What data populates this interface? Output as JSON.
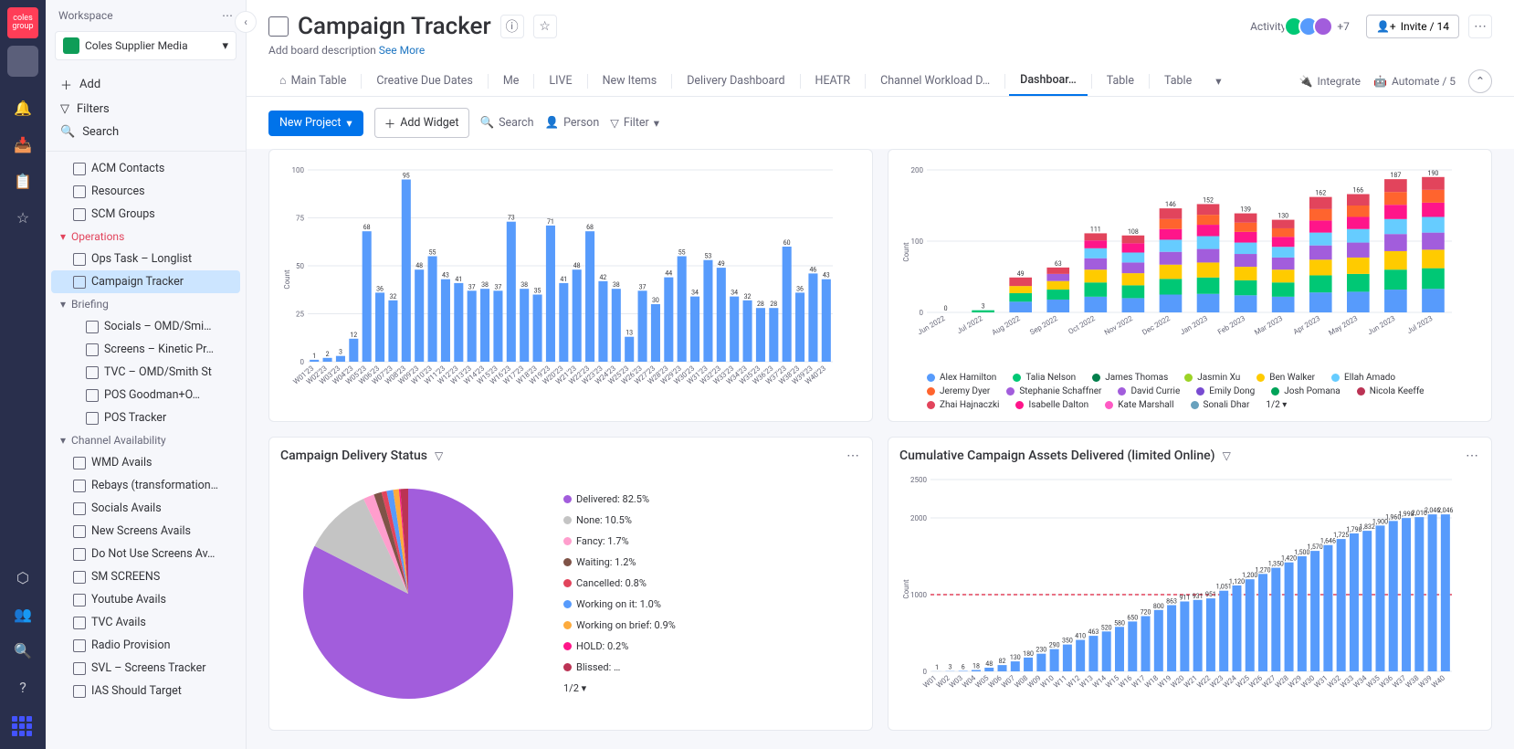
{
  "rail": {
    "logo": "coles group"
  },
  "sidebar": {
    "head": "Workspace",
    "workspace": "Coles Supplier Media",
    "tools": {
      "add": "Add",
      "filters": "Filters",
      "search": "Search"
    },
    "tree": [
      {
        "t": "item",
        "lvl": 1,
        "label": "ACM Contacts"
      },
      {
        "t": "item",
        "lvl": 1,
        "label": "Resources"
      },
      {
        "t": "item",
        "lvl": 1,
        "label": "SCM Groups"
      },
      {
        "t": "section",
        "label": "Operations",
        "red": true
      },
      {
        "t": "item",
        "lvl": 1,
        "label": "Ops Task – Longlist"
      },
      {
        "t": "item",
        "lvl": 1,
        "label": "Campaign Tracker",
        "active": true
      },
      {
        "t": "section",
        "lvl": 1,
        "label": "Briefing"
      },
      {
        "t": "item",
        "lvl": 2,
        "label": "Socials – OMD/Smi…"
      },
      {
        "t": "item",
        "lvl": 2,
        "label": "Screens – Kinetic Pr…"
      },
      {
        "t": "item",
        "lvl": 2,
        "label": "TVC – OMD/Smith St"
      },
      {
        "t": "item",
        "lvl": 2,
        "label": "POS Goodman+O…"
      },
      {
        "t": "item",
        "lvl": 2,
        "label": "POS Tracker"
      },
      {
        "t": "section",
        "label": "Channel Availability"
      },
      {
        "t": "item",
        "lvl": 1,
        "label": "WMD Avails"
      },
      {
        "t": "item",
        "lvl": 1,
        "label": "Rebays (transformation…"
      },
      {
        "t": "item",
        "lvl": 1,
        "label": "Socials Avails"
      },
      {
        "t": "item",
        "lvl": 1,
        "label": "New Screens Avails"
      },
      {
        "t": "item",
        "lvl": 1,
        "label": "Do Not Use Screens Av…"
      },
      {
        "t": "item",
        "lvl": 1,
        "label": "SM SCREENS"
      },
      {
        "t": "item",
        "lvl": 1,
        "label": "Youtube Avails"
      },
      {
        "t": "item",
        "lvl": 1,
        "label": "TVC Avails"
      },
      {
        "t": "item",
        "lvl": 1,
        "label": "Radio Provision"
      },
      {
        "t": "item",
        "lvl": 1,
        "label": "SVL – Screens Tracker"
      },
      {
        "t": "item",
        "lvl": 1,
        "label": "IAS Should Target"
      }
    ]
  },
  "header": {
    "title": "Campaign Tracker",
    "desc": "Add board description",
    "see_more": "See More",
    "activity": "Activity",
    "invite": "Invite / 14",
    "avatar_colors": [
      "#00c875",
      "#579bfc",
      "#a25ddc"
    ],
    "tabs": [
      "Main Table",
      "Creative Due Dates",
      "Me",
      "LIVE",
      "New Items",
      "Delivery Dashboard",
      "HEATR",
      "Channel Workload D…",
      "Dashboar…",
      "Table",
      "Table"
    ],
    "active_tab": 8,
    "integrate": "Integrate",
    "automate": "Automate / 5"
  },
  "toolbar": {
    "new": "New Project",
    "add_widget": "Add Widget",
    "search": "Search",
    "person": "Person",
    "filter": "Filter"
  },
  "chart1": {
    "type": "bar",
    "color": "#579bfc",
    "bg": "#ffffff",
    "grid": "#e6e9ef",
    "ylabel": "Count",
    "ymax": 100,
    "yticks": [
      0,
      25,
      50,
      75,
      100
    ],
    "categories": [
      "W01'23",
      "W02'23",
      "W03'23",
      "W04'23",
      "W05'23",
      "W06'23",
      "W07'23",
      "W08'23",
      "W09'23",
      "W10'23",
      "W11'23",
      "W12'23",
      "W13'23",
      "W14'23",
      "W15'23",
      "W16'23",
      "W17'23",
      "W18'23",
      "W19'23",
      "W20'23",
      "W21'23",
      "W22'23",
      "W23'23",
      "W24'23",
      "W25'23",
      "W26'23",
      "W27'23",
      "W28'23",
      "W29'23",
      "W30'23",
      "W31'23",
      "W32'23",
      "W33'23",
      "W34'23",
      "W35'23",
      "W36'23",
      "W37'23",
      "W38'23",
      "W39'23",
      "W40'23"
    ],
    "values": [
      1,
      2,
      3,
      12,
      68,
      36,
      32,
      95,
      48,
      55,
      43,
      41,
      37,
      38,
      37,
      73,
      38,
      35,
      71,
      41,
      48,
      68,
      42,
      38,
      13,
      37,
      30,
      44,
      55,
      34,
      53,
      49,
      34,
      32,
      28,
      28,
      60,
      36,
      46,
      43
    ]
  },
  "chart2": {
    "type": "stacked-bar",
    "bg": "#ffffff",
    "grid": "#e6e9ef",
    "ylabel": "Count",
    "ymax": 200,
    "categories": [
      "Jun 2022",
      "Jul 2022",
      "Aug 2022",
      "Sep 2022",
      "Oct 2022",
      "Nov 2022",
      "Dec 2022",
      "Jan 2023",
      "Feb 2023",
      "Mar 2023",
      "Apr 2023",
      "May 2023",
      "Jun 2023",
      "Jul 2023"
    ],
    "totals": [
      0,
      3,
      49,
      63,
      111,
      108,
      146,
      152,
      139,
      130,
      162,
      166,
      187,
      190
    ],
    "series": [
      {
        "name": "Alex Hamilton",
        "color": "#579bfc"
      },
      {
        "name": "Talia Nelson",
        "color": "#00c875"
      },
      {
        "name": "James Thomas",
        "color": "#037f4c"
      },
      {
        "name": "Jasmin Xu",
        "color": "#9cd326"
      },
      {
        "name": "Ben Walker",
        "color": "#ffcb00"
      },
      {
        "name": "Ellah Amado",
        "color": "#66ccff"
      },
      {
        "name": "Jeremy Dyer",
        "color": "#ff642e"
      },
      {
        "name": "Stephanie Schaffner",
        "color": "#a25ddc"
      },
      {
        "name": "David Currie",
        "color": "#a25ddc"
      },
      {
        "name": "Emily Dong",
        "color": "#784bd1"
      },
      {
        "name": "Josh Pomana",
        "color": "#00a359"
      },
      {
        "name": "Nicola Keeffe",
        "color": "#bb3354"
      },
      {
        "name": "Zhai Hajnaczki",
        "color": "#e2445c"
      },
      {
        "name": "Isabelle Dalton",
        "color": "#ff158a"
      },
      {
        "name": "Kate Marshall",
        "color": "#ff5ac4"
      },
      {
        "name": "Sonali Dhar",
        "color": "#68a1bd"
      }
    ],
    "stacks": [
      [],
      [
        [
          "#00c875",
          3
        ]
      ],
      [
        [
          "#579bfc",
          15
        ],
        [
          "#00c875",
          12
        ],
        [
          "#ffcb00",
          10
        ],
        [
          "#e2445c",
          12
        ]
      ],
      [
        [
          "#579bfc",
          18
        ],
        [
          "#00c875",
          14
        ],
        [
          "#ffcb00",
          12
        ],
        [
          "#a25ddc",
          10
        ],
        [
          "#e2445c",
          9
        ]
      ],
      [
        [
          "#579bfc",
          22
        ],
        [
          "#00c875",
          20
        ],
        [
          "#ffcb00",
          18
        ],
        [
          "#a25ddc",
          16
        ],
        [
          "#66ccff",
          14
        ],
        [
          "#ff158a",
          11
        ],
        [
          "#e2445c",
          10
        ]
      ],
      [
        [
          "#579bfc",
          20
        ],
        [
          "#00c875",
          18
        ],
        [
          "#ffcb00",
          17
        ],
        [
          "#a25ddc",
          15
        ],
        [
          "#66ccff",
          14
        ],
        [
          "#ff158a",
          13
        ],
        [
          "#e2445c",
          11
        ]
      ],
      [
        [
          "#579bfc",
          25
        ],
        [
          "#00c875",
          22
        ],
        [
          "#ffcb00",
          20
        ],
        [
          "#a25ddc",
          18
        ],
        [
          "#66ccff",
          17
        ],
        [
          "#ff158a",
          15
        ],
        [
          "#ff642e",
          14
        ],
        [
          "#e2445c",
          15
        ]
      ],
      [
        [
          "#579bfc",
          26
        ],
        [
          "#00c875",
          23
        ],
        [
          "#ffcb00",
          21
        ],
        [
          "#a25ddc",
          19
        ],
        [
          "#66ccff",
          18
        ],
        [
          "#ff158a",
          16
        ],
        [
          "#ff642e",
          14
        ],
        [
          "#e2445c",
          15
        ]
      ],
      [
        [
          "#579bfc",
          24
        ],
        [
          "#00c875",
          21
        ],
        [
          "#ffcb00",
          19
        ],
        [
          "#a25ddc",
          18
        ],
        [
          "#66ccff",
          16
        ],
        [
          "#ff158a",
          15
        ],
        [
          "#ff642e",
          13
        ],
        [
          "#e2445c",
          13
        ]
      ],
      [
        [
          "#579bfc",
          22
        ],
        [
          "#00c875",
          20
        ],
        [
          "#ffcb00",
          18
        ],
        [
          "#a25ddc",
          17
        ],
        [
          "#66ccff",
          15
        ],
        [
          "#ff158a",
          14
        ],
        [
          "#ff642e",
          12
        ],
        [
          "#e2445c",
          12
        ]
      ],
      [
        [
          "#579bfc",
          28
        ],
        [
          "#00c875",
          24
        ],
        [
          "#ffcb00",
          22
        ],
        [
          "#a25ddc",
          20
        ],
        [
          "#66ccff",
          18
        ],
        [
          "#ff158a",
          17
        ],
        [
          "#ff642e",
          16
        ],
        [
          "#e2445c",
          17
        ]
      ],
      [
        [
          "#579bfc",
          29
        ],
        [
          "#00c875",
          25
        ],
        [
          "#ffcb00",
          23
        ],
        [
          "#a25ddc",
          21
        ],
        [
          "#66ccff",
          19
        ],
        [
          "#ff158a",
          17
        ],
        [
          "#ff642e",
          16
        ],
        [
          "#e2445c",
          16
        ]
      ],
      [
        [
          "#579bfc",
          32
        ],
        [
          "#00c875",
          28
        ],
        [
          "#ffcb00",
          26
        ],
        [
          "#a25ddc",
          24
        ],
        [
          "#66ccff",
          21
        ],
        [
          "#ff158a",
          20
        ],
        [
          "#ff642e",
          18
        ],
        [
          "#e2445c",
          18
        ]
      ],
      [
        [
          "#579bfc",
          33
        ],
        [
          "#00c875",
          29
        ],
        [
          "#ffcb00",
          26
        ],
        [
          "#a25ddc",
          24
        ],
        [
          "#66ccff",
          22
        ],
        [
          "#ff158a",
          20
        ],
        [
          "#ff642e",
          18
        ],
        [
          "#e2445c",
          18
        ]
      ]
    ],
    "footer": "1/2 ▾"
  },
  "chart3": {
    "title": "Campaign Delivery Status",
    "type": "pie",
    "slices": [
      {
        "label": "Delivered: 82.5%",
        "value": 82.5,
        "color": "#a25ddc"
      },
      {
        "label": "None: 10.5%",
        "value": 10.5,
        "color": "#c4c4c4"
      },
      {
        "label": "Fancy: 1.7%",
        "value": 1.7,
        "color": "#ff9ecd"
      },
      {
        "label": "Waiting: 1.2%",
        "value": 1.2,
        "color": "#7f5347"
      },
      {
        "label": "Cancelled: 0.8%",
        "value": 0.8,
        "color": "#e2445c"
      },
      {
        "label": "Working on it: 1.0%",
        "value": 1.0,
        "color": "#579bfc"
      },
      {
        "label": "Working on brief: 0.9%",
        "value": 0.9,
        "color": "#fdab3d"
      },
      {
        "label": "HOLD: 0.2%",
        "value": 0.2,
        "color": "#ff158a"
      },
      {
        "label": "Blissed: …",
        "value": 1.2,
        "color": "#bb3354"
      }
    ],
    "footer": "1/2 ▾"
  },
  "chart4": {
    "title": "Cumulative Campaign Assets Delivered (limited Online)",
    "type": "bar",
    "color": "#579bfc",
    "target_color": "#e2445c",
    "target": 1000,
    "bg": "#ffffff",
    "grid": "#e6e9ef",
    "ylabel": "Count",
    "ymax": 2500,
    "yticks": [
      0,
      1000,
      2000,
      2500
    ],
    "categories": [
      "W01",
      "W02",
      "W03",
      "W04",
      "W05",
      "W06",
      "W07",
      "W08",
      "W09",
      "W10",
      "W11",
      "W12",
      "W13",
      "W14",
      "W15",
      "W16",
      "W17",
      "W18",
      "W19",
      "W20",
      "W21",
      "W22",
      "W23",
      "W24",
      "W25",
      "W26",
      "W27",
      "W28",
      "W29",
      "W30",
      "W31",
      "W32",
      "W33",
      "W34",
      "W35",
      "W36",
      "W37",
      "W38",
      "W39",
      "W40"
    ],
    "values": [
      1,
      3,
      6,
      18,
      48,
      82,
      130,
      180,
      230,
      290,
      350,
      410,
      463,
      520,
      580,
      650,
      720,
      800,
      863,
      911,
      931,
      951,
      1051,
      1120,
      1200,
      1270,
      1350,
      1420,
      1500,
      1570,
      1646,
      1725,
      1798,
      1832,
      1900,
      1960,
      1998,
      2010,
      2046,
      2046
    ]
  }
}
